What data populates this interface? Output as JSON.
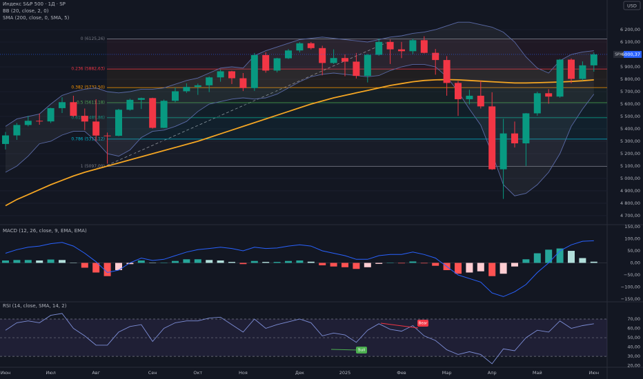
{
  "chart_data": [
    {
      "type": "candlestick",
      "title": "Индекс S&P 500 · 1Д · SP",
      "currency": "USD",
      "ticker": "SPX",
      "last_price": {
        "value": 6000.37,
        "label": "6000,37"
      },
      "categories": [
        "Июн",
        null,
        null,
        null,
        "Июл",
        null,
        null,
        null,
        "Авг",
        null,
        null,
        null,
        null,
        "Сен",
        null,
        null,
        null,
        "Окт",
        null,
        null,
        null,
        "Ноя",
        null,
        null,
        null,
        null,
        "Дек",
        null,
        null,
        null,
        "2025",
        null,
        null,
        null,
        null,
        "Фев",
        null,
        null,
        null,
        "Мар",
        null,
        null,
        null,
        "Апр",
        null,
        null,
        null,
        "Май",
        null,
        null,
        null,
        null,
        "Июн"
      ],
      "ohlc": [
        [
          5278,
          5375,
          5234,
          5347
        ],
        [
          5347,
          5447,
          5311,
          5431
        ],
        [
          5431,
          5505,
          5420,
          5465
        ],
        [
          5465,
          5523,
          5433,
          5460
        ],
        [
          5460,
          5570,
          5447,
          5567
        ],
        [
          5567,
          5655,
          5528,
          5615
        ],
        [
          5615,
          5667,
          5497,
          5505
        ],
        [
          5505,
          5564,
          5390,
          5459
        ],
        [
          5459,
          5639,
          5302,
          5346
        ],
        [
          5346,
          5370,
          5119,
          5344
        ],
        [
          5344,
          5561,
          5340,
          5554
        ],
        [
          5554,
          5643,
          5547,
          5634
        ],
        [
          5634,
          5652,
          5560,
          5648
        ],
        [
          5648,
          5651,
          5402,
          5408
        ],
        [
          5408,
          5636,
          5406,
          5626
        ],
        [
          5626,
          5733,
          5615,
          5703
        ],
        [
          5703,
          5767,
          5690,
          5738
        ],
        [
          5738,
          5765,
          5674,
          5751
        ],
        [
          5751,
          5822,
          5696,
          5815
        ],
        [
          5815,
          5878,
          5780,
          5864
        ],
        [
          5864,
          5869,
          5762,
          5808
        ],
        [
          5808,
          5850,
          5705,
          5729
        ],
        [
          5729,
          6012,
          5706,
          5995
        ],
        [
          5995,
          6017,
          5853,
          5870
        ],
        [
          5870,
          5973,
          5855,
          5969
        ],
        [
          5969,
          6044,
          5963,
          6032
        ],
        [
          6032,
          6099,
          6016,
          6090
        ],
        [
          6090,
          6100,
          6040,
          6051
        ],
        [
          6051,
          6070,
          5832,
          5931
        ],
        [
          5931,
          6041,
          5923,
          5971
        ],
        [
          5971,
          6000,
          5824,
          5942
        ],
        [
          5942,
          6012,
          5806,
          5827
        ],
        [
          5827,
          6004,
          5774,
          5997
        ],
        [
          5997,
          6128,
          5990,
          6101
        ],
        [
          6101,
          6120,
          5923,
          6041
        ],
        [
          6041,
          6101,
          5970,
          6026
        ],
        [
          6026,
          6127,
          6003,
          6115
        ],
        [
          6115,
          6147,
          6008,
          6013
        ],
        [
          6013,
          6044,
          5837,
          5955
        ],
        [
          5955,
          5986,
          5667,
          5770
        ],
        [
          5770,
          5786,
          5505,
          5639
        ],
        [
          5639,
          5715,
          5597,
          5667
        ],
        [
          5667,
          5786,
          5564,
          5581
        ],
        [
          5581,
          5695,
          5069,
          5074
        ],
        [
          5074,
          5481,
          4835,
          5363
        ],
        [
          5363,
          5459,
          5250,
          5283
        ],
        [
          5283,
          5528,
          5101,
          5525
        ],
        [
          5525,
          5700,
          5506,
          5687
        ],
        [
          5687,
          5720,
          5603,
          5660
        ],
        [
          5660,
          5964,
          5651,
          5958
        ],
        [
          5958,
          5968,
          5767,
          5803
        ],
        [
          5803,
          5944,
          5790,
          5912
        ],
        [
          5912,
          6016,
          5861,
          6000.37
        ]
      ],
      "up_color": "#089981",
      "down_color": "#f23645",
      "ylim": [
        4633,
        6439
      ],
      "yticks": [
        {
          "value": 6200,
          "label": "6 200,00"
        },
        {
          "value": 6100,
          "label": "6 100,00"
        },
        {
          "value": 5900,
          "label": "5 900,00"
        },
        {
          "value": 5800,
          "label": "5 800,00"
        },
        {
          "value": 5700,
          "label": "5 700,00"
        },
        {
          "value": 5600,
          "label": "5 600,00"
        },
        {
          "value": 5500,
          "label": "5 500,00"
        },
        {
          "value": 5400,
          "label": "5 400,00"
        },
        {
          "value": 5300,
          "label": "5 300,00"
        },
        {
          "value": 5200,
          "label": "5 200,00"
        },
        {
          "value": 5100,
          "label": "5 100,00"
        },
        {
          "value": 5000,
          "label": "5 000,00"
        },
        {
          "value": 4900,
          "label": "4 900,00"
        },
        {
          "value": 4800,
          "label": "4 800,00"
        },
        {
          "value": 4700,
          "label": "4 700,00"
        }
      ],
      "fib": [
        {
          "value": 6125.26,
          "label": "0 (6125,26)",
          "color": "#787b86"
        },
        {
          "value": 5882.63,
          "label": "0.236 (5882,63)",
          "color": "#f23645"
        },
        {
          "value": 5732.5,
          "label": "0.382 (5732,50)",
          "color": "#ff9800"
        },
        {
          "value": 5611.18,
          "label": "0.5 (5611,18)",
          "color": "#4caf50"
        },
        {
          "value": 5489.86,
          "label": "0.618 (5489,86)",
          "color": "#089981"
        },
        {
          "value": 5317.12,
          "label": "0.786 (5317,12)",
          "color": "#00bcd4"
        },
        {
          "value": 5097.09,
          "label": "1 (5097,09)",
          "color": "#787b86"
        }
      ],
      "series": [
        {
          "name": "BB (20, close, 2, 0)",
          "color": "#5b6ba8",
          "fill": "#787b86",
          "upper": [
            5420,
            5480,
            5500,
            5520,
            5600,
            5670,
            5700,
            5720,
            5730,
            5700,
            5690,
            5700,
            5720,
            5720,
            5730,
            5760,
            5790,
            5810,
            5850,
            5890,
            5900,
            5890,
            5990,
            6030,
            6060,
            6090,
            6120,
            6130,
            6140,
            6130,
            6120,
            6110,
            6100,
            6120,
            6140,
            6150,
            6170,
            6180,
            6200,
            6230,
            6260,
            6260,
            6240,
            6220,
            6180,
            6100,
            5980,
            5890,
            5850,
            5950,
            6000,
            6020,
            6030
          ],
          "lower": [
            5050,
            5100,
            5180,
            5280,
            5300,
            5350,
            5380,
            5380,
            5300,
            5200,
            5180,
            5230,
            5330,
            5380,
            5390,
            5420,
            5460,
            5540,
            5600,
            5620,
            5640,
            5650,
            5640,
            5650,
            5680,
            5730,
            5780,
            5820,
            5840,
            5850,
            5840,
            5830,
            5820,
            5830,
            5870,
            5900,
            5920,
            5920,
            5900,
            5820,
            5700,
            5560,
            5430,
            5200,
            4950,
            4860,
            4880,
            4950,
            5050,
            5200,
            5420,
            5560,
            5680
          ]
        },
        {
          "name": "SMA (200, close, 0, SMA, 5)",
          "color": "#f5a623",
          "values": [
            4780,
            4830,
            4870,
            4910,
            4950,
            4985,
            5020,
            5050,
            5075,
            5100,
            5125,
            5150,
            5175,
            5200,
            5225,
            5250,
            5275,
            5300,
            5330,
            5360,
            5390,
            5420,
            5450,
            5480,
            5510,
            5540,
            5570,
            5600,
            5625,
            5650,
            5670,
            5690,
            5710,
            5730,
            5750,
            5765,
            5780,
            5790,
            5795,
            5797,
            5795,
            5790,
            5785,
            5780,
            5775,
            5770,
            5770,
            5772,
            5775,
            5778,
            5782,
            5788,
            5795
          ]
        }
      ]
    },
    {
      "type": "macd",
      "title": "MACD (12, 26, close, 9, EMA, EMA)",
      "ylim": [
        -159,
        159
      ],
      "yticks": [
        {
          "value": 150,
          "label": "150,00"
        },
        {
          "value": 100,
          "label": "100,00"
        },
        {
          "value": 50,
          "label": "50,00"
        },
        {
          "value": 0,
          "label": "0,00"
        },
        {
          "value": -50,
          "label": "−50,00"
        },
        {
          "value": -100,
          "label": "−100,00"
        },
        {
          "value": -150,
          "label": "−150,00"
        }
      ],
      "macd": {
        "color": "#2962ff",
        "values": [
          40,
          55,
          65,
          70,
          80,
          85,
          70,
          40,
          5,
          -40,
          -30,
          0,
          20,
          10,
          15,
          30,
          45,
          55,
          60,
          65,
          60,
          50,
          65,
          60,
          62,
          70,
          75,
          70,
          50,
          40,
          30,
          15,
          15,
          30,
          35,
          35,
          45,
          35,
          20,
          -15,
          -50,
          -65,
          -80,
          -125,
          -140,
          -120,
          -90,
          -40,
          0,
          50,
          75,
          90,
          92
        ]
      },
      "histogram": {
        "colors": [
          "#26a69a",
          "#b2dfdb",
          "#ffcdd2",
          "#ff5252"
        ],
        "values": [
          10,
          12,
          12,
          10,
          14,
          12,
          0,
          -20,
          -40,
          -55,
          -30,
          -5,
          10,
          0,
          0,
          8,
          15,
          15,
          12,
          10,
          4,
          -5,
          8,
          4,
          4,
          8,
          10,
          5,
          -10,
          -15,
          -18,
          -25,
          -18,
          -4,
          0,
          -2,
          6,
          -2,
          -12,
          -30,
          -45,
          -40,
          -35,
          -55,
          -45,
          -15,
          15,
          40,
          55,
          60,
          50,
          20,
          5
        ]
      }
    },
    {
      "type": "line",
      "title": "RSI (14, close, SMA, 14, 2)",
      "ylim": [
        19,
        87
      ],
      "yticks": [
        {
          "value": 70,
          "label": "70,00"
        },
        {
          "value": 60,
          "label": "60,00"
        },
        {
          "value": 50,
          "label": "50,00"
        },
        {
          "value": 40,
          "label": "40,00"
        },
        {
          "value": 30,
          "label": "30,00"
        },
        {
          "value": 20,
          "label": "20,00"
        }
      ],
      "color": "#7e8fd8",
      "values": [
        58,
        66,
        68,
        66,
        74,
        76,
        60,
        52,
        42,
        42,
        56,
        62,
        64,
        46,
        60,
        66,
        68,
        68,
        71,
        72,
        64,
        56,
        70,
        60,
        64,
        67,
        70,
        66,
        52,
        55,
        53,
        45,
        58,
        65,
        59,
        57,
        63,
        52,
        47,
        37,
        32,
        35,
        32,
        22,
        38,
        36,
        50,
        58,
        56,
        68,
        60,
        63,
        65
      ],
      "annotations": [
        {
          "label": "Bull",
          "color": "#4caf50"
        },
        {
          "label": "Bear",
          "color": "#f23645"
        }
      ]
    }
  ]
}
